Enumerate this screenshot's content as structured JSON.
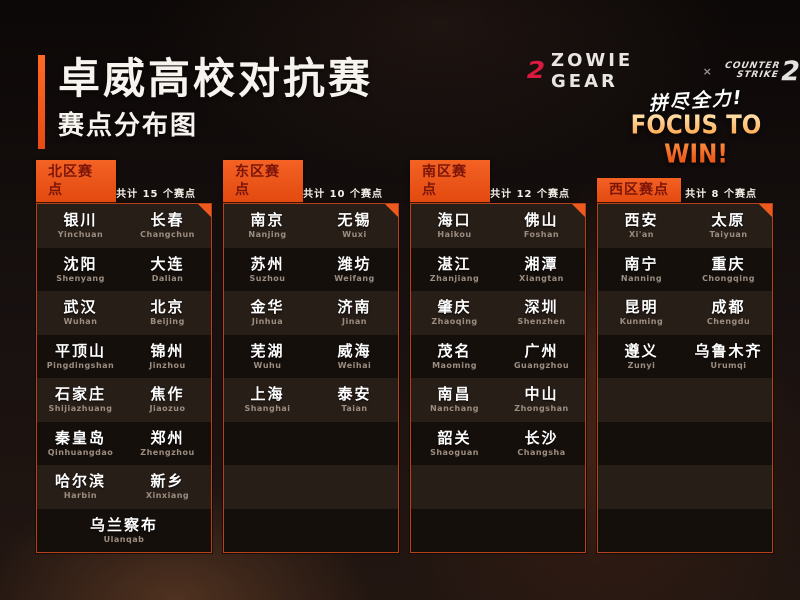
{
  "title": {
    "main": "卓威高校对抗赛",
    "sub": "赛点分布图"
  },
  "brand": {
    "zowie_icon_glyph": "2",
    "zowie": "ZOWIE GEAR",
    "separator": "×",
    "cs_line1": "COUNTER",
    "cs_line2": "STRIKE",
    "cs_number": "2"
  },
  "slogan": {
    "zh": "拼尽全力!",
    "en": "FOCUS TO WIN!"
  },
  "colors": {
    "accent_orange": "#ee5a1e",
    "tab_text_maroon": "#7c1509",
    "row_light": "#281e18",
    "row_dark": "#150f0c",
    "pinyin_gray": "#9b8d80",
    "zowie_red": "#d91a3e",
    "focus_gradient_top": "#ffe2ae",
    "focus_gradient_bottom": "#ef5d1c"
  },
  "layout": {
    "stripe_count": 8
  },
  "regions": [
    {
      "name": "北区赛点",
      "count_label": "共计 15 个赛点",
      "rows": [
        {
          "cities": [
            {
              "zh": "银川",
              "py": "Yinchuan"
            },
            {
              "zh": "长春",
              "py": "Changchun"
            }
          ]
        },
        {
          "cities": [
            {
              "zh": "沈阳",
              "py": "Shenyang"
            },
            {
              "zh": "大连",
              "py": "Dalian"
            }
          ]
        },
        {
          "cities": [
            {
              "zh": "武汉",
              "py": "Wuhan"
            },
            {
              "zh": "北京",
              "py": "Beijing"
            }
          ]
        },
        {
          "cities": [
            {
              "zh": "平顶山",
              "py": "Pingdingshan"
            },
            {
              "zh": "锦州",
              "py": "Jinzhou"
            }
          ]
        },
        {
          "cities": [
            {
              "zh": "石家庄",
              "py": "Shijiazhuang"
            },
            {
              "zh": "焦作",
              "py": "Jiaozuo"
            }
          ]
        },
        {
          "cities": [
            {
              "zh": "秦皇岛",
              "py": "Qinhuangdao"
            },
            {
              "zh": "郑州",
              "py": "Zhengzhou"
            }
          ]
        },
        {
          "cities": [
            {
              "zh": "哈尔滨",
              "py": "Harbin"
            },
            {
              "zh": "新乡",
              "py": "Xinxiang"
            }
          ]
        },
        {
          "cities": [
            {
              "zh": "乌兰察布",
              "py": "Ulanqab"
            }
          ]
        }
      ]
    },
    {
      "name": "东区赛点",
      "count_label": "共计 10 个赛点",
      "rows": [
        {
          "cities": [
            {
              "zh": "南京",
              "py": "Nanjing"
            },
            {
              "zh": "无锡",
              "py": "Wuxi"
            }
          ]
        },
        {
          "cities": [
            {
              "zh": "苏州",
              "py": "Suzhou"
            },
            {
              "zh": "潍坊",
              "py": "Weifang"
            }
          ]
        },
        {
          "cities": [
            {
              "zh": "金华",
              "py": "Jinhua"
            },
            {
              "zh": "济南",
              "py": "Jinan"
            }
          ]
        },
        {
          "cities": [
            {
              "zh": "芜湖",
              "py": "Wuhu"
            },
            {
              "zh": "威海",
              "py": "Weihai"
            }
          ]
        },
        {
          "cities": [
            {
              "zh": "上海",
              "py": "Shanghai"
            },
            {
              "zh": "泰安",
              "py": "Taian"
            }
          ]
        }
      ]
    },
    {
      "name": "南区赛点",
      "count_label": "共计 12 个赛点",
      "rows": [
        {
          "cities": [
            {
              "zh": "海口",
              "py": "Haikou"
            },
            {
              "zh": "佛山",
              "py": "Foshan"
            }
          ]
        },
        {
          "cities": [
            {
              "zh": "湛江",
              "py": "Zhanjiang"
            },
            {
              "zh": "湘潭",
              "py": "Xiangtan"
            }
          ]
        },
        {
          "cities": [
            {
              "zh": "肇庆",
              "py": "Zhaoqing"
            },
            {
              "zh": "深圳",
              "py": "Shenzhen"
            }
          ]
        },
        {
          "cities": [
            {
              "zh": "茂名",
              "py": "Maoming"
            },
            {
              "zh": "广州",
              "py": "Guangzhou"
            }
          ]
        },
        {
          "cities": [
            {
              "zh": "南昌",
              "py": "Nanchang"
            },
            {
              "zh": "中山",
              "py": "Zhongshan"
            }
          ]
        },
        {
          "cities": [
            {
              "zh": "韶关",
              "py": "Shaoguan"
            },
            {
              "zh": "长沙",
              "py": "Changsha"
            }
          ]
        }
      ]
    },
    {
      "name": "西区赛点",
      "count_label": "共计 8 个赛点",
      "rows": [
        {
          "cities": [
            {
              "zh": "西安",
              "py": "Xi'an"
            },
            {
              "zh": "太原",
              "py": "Taiyuan"
            }
          ]
        },
        {
          "cities": [
            {
              "zh": "南宁",
              "py": "Nanning"
            },
            {
              "zh": "重庆",
              "py": "Chongqing"
            }
          ]
        },
        {
          "cities": [
            {
              "zh": "昆明",
              "py": "Kunming"
            },
            {
              "zh": "成都",
              "py": "Chengdu"
            }
          ]
        },
        {
          "cities": [
            {
              "zh": "遵义",
              "py": "Zunyi"
            },
            {
              "zh": "乌鲁木齐",
              "py": "Urumqi"
            }
          ]
        }
      ]
    }
  ]
}
